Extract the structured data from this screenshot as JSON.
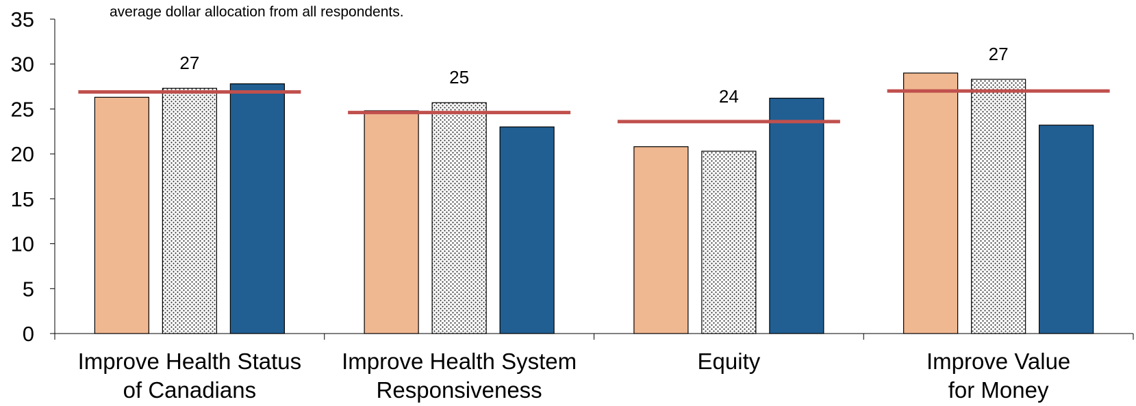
{
  "chart_data": {
    "type": "bar",
    "note": "average dollar allocation from all respondents.",
    "categories": [
      [
        "Improve Health Status",
        "of Canadians"
      ],
      [
        "Improve Health System",
        "Responsiveness"
      ],
      [
        "Equity"
      ],
      [
        "Improve Value",
        "for Money"
      ]
    ],
    "series": [
      {
        "values": [
          26.3,
          24.8,
          20.8,
          29.0
        ],
        "color": "#f0b891",
        "pattern": "solid"
      },
      {
        "values": [
          27.3,
          25.7,
          20.3,
          28.3
        ],
        "color": "#ffffff",
        "pattern": "dotted"
      },
      {
        "values": [
          27.8,
          23.0,
          26.2,
          23.2
        ],
        "color": "#215f93",
        "pattern": "solid"
      }
    ],
    "averages": [
      27,
      25,
      24,
      27
    ],
    "average_line_values": [
      26.9,
      24.6,
      23.6,
      27.0
    ],
    "average_line_color": "#c0504d",
    "ylim": [
      0,
      35
    ],
    "yticks": [
      0,
      5,
      10,
      15,
      20,
      25,
      30,
      35
    ],
    "grid": false
  }
}
